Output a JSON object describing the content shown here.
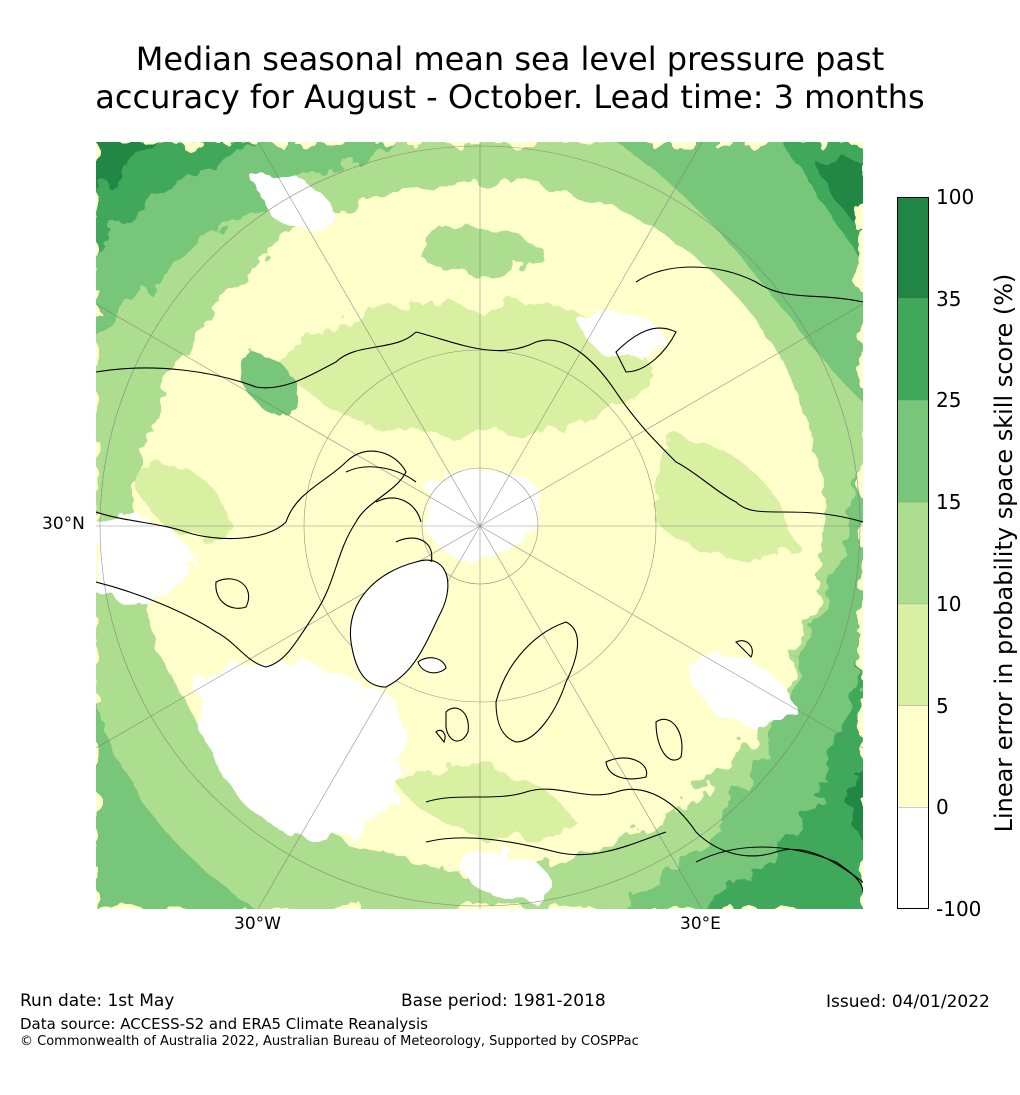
{
  "title_line1": "Median seasonal mean sea level pressure past",
  "title_line2": "accuracy for August - October. Lead time: 3 months",
  "map": {
    "lat_label": "30°N",
    "lon_labels": [
      "30°W",
      "30°E"
    ]
  },
  "colorbar": {
    "label": "Linear error in probability space skill score (%)",
    "ticks": [
      "100",
      "35",
      "25",
      "15",
      "10",
      "5",
      "0",
      "-100"
    ],
    "colors": [
      "#218644",
      "#40a85a",
      "#78c679",
      "#addd8e",
      "#d9f0a3",
      "#ffffcc",
      "#ffffff"
    ]
  },
  "footer": {
    "run_date": "Run date: 1st May",
    "base_period": "Base period: 1981-2018",
    "issued": "Issued: 04/01/2022",
    "data_source": "Data source: ACCESS-S2 and ERA5 Climate Reanalysis",
    "copyright": "© Commonwealth of Australia 2022, Australian Bureau of Meteorology, Supported by COSPPac"
  }
}
